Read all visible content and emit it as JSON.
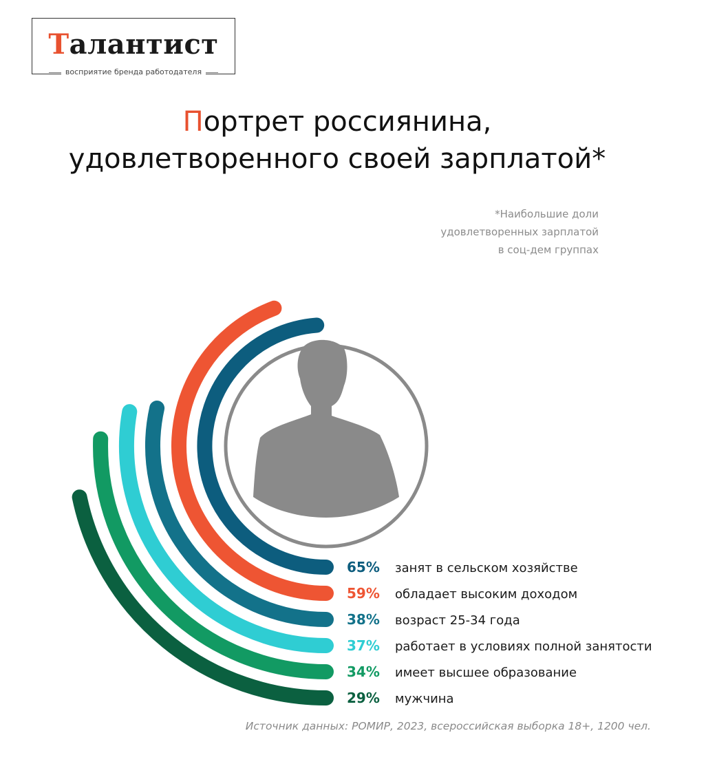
{
  "logo": {
    "name_first": "Т",
    "name_rest": "алантист",
    "tagline": "восприятие бренда работодателя"
  },
  "title": {
    "first_letter": "П",
    "line1_rest": "ортрет россиянина,",
    "line2": "удовлетворенного своей зарплатой*"
  },
  "note": {
    "line1": "*Наибольшие доли",
    "line2": "удовлетворенных зарплатой",
    "line3": "в соц-дем группах"
  },
  "chart_data": {
    "type": "radial-bar",
    "series": [
      {
        "label": "занят в сельском хозяйстве",
        "value": 65,
        "display": "65%",
        "color": "#0d5d7e"
      },
      {
        "label": "обладает высоким доходом",
        "value": 59,
        "display": "59%",
        "color": "#ee5533"
      },
      {
        "label": "возраст 25-34 года",
        "value": 38,
        "display": "38%",
        "color": "#13728a"
      },
      {
        "label": "работает в условиях полной занятости",
        "value": 37,
        "display": "37%",
        "color": "#2fcdd3"
      },
      {
        "label": "имеет высшее образование",
        "value": 34,
        "display": "34%",
        "color": "#129a63"
      },
      {
        "label": "мужчина",
        "value": 29,
        "display": "29%",
        "color": "#0b6040"
      }
    ],
    "center_icon": "person-silhouette-icon"
  },
  "source": "Источник данных: РОМИР, 2023, всероссийская выборка 18+, 1200 чел."
}
